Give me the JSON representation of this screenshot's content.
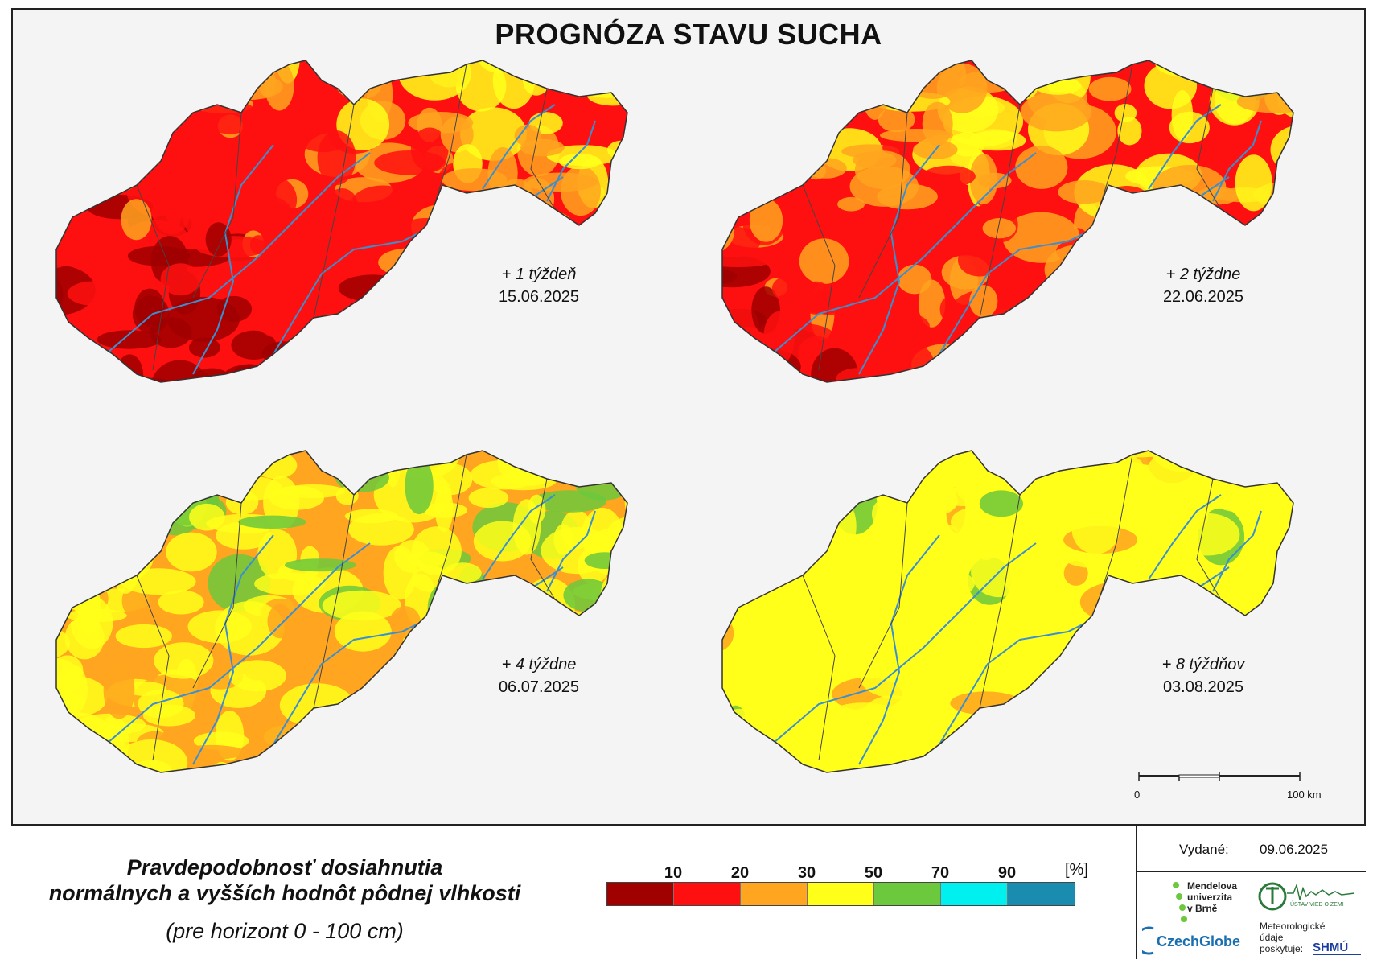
{
  "title": "PROGNÓZA STAVU SUCHA",
  "maps": [
    {
      "lead": "+ 1 týždeň",
      "date": "15.06.2025",
      "dryness": 0.85
    },
    {
      "lead": "+ 2 týždne",
      "date": "22.06.2025",
      "dryness": 0.7
    },
    {
      "lead": "+ 4 týždne",
      "date": "06.07.2025",
      "dryness": 0.4
    },
    {
      "lead": "+ 8 týždňov",
      "date": "03.08.2025",
      "dryness": 0.1
    }
  ],
  "scale_bar": {
    "zero": "0",
    "end": "100 km"
  },
  "legend": {
    "title_line1": "Pravdepodobnosť dosiahnutia",
    "title_line2": "normálnych a vyšších hodnôt pôdnej vlhkosti",
    "subtitle": "(pre horizont 0 - 100 cm)",
    "ticks": [
      "10",
      "20",
      "30",
      "50",
      "70",
      "90"
    ],
    "unit": "[%]",
    "colors": [
      "#a00000",
      "#ff1010",
      "#ffa51f",
      "#ffff1a",
      "#6cc83c",
      "#00f0f0",
      "#1a8cb0"
    ]
  },
  "issued": {
    "label": "Vydané:",
    "date": "09.06.2025"
  },
  "logos": {
    "mendel": [
      "Mendelova",
      "univerzita",
      "v Brně"
    ],
    "czechglobe": "CzechGlobe",
    "uvz": "ÚSTAV VIED O ZEMI",
    "meteo": [
      "Meteorologické",
      "údaje",
      "poskytuje:"
    ],
    "shmu": "SHMÚ"
  }
}
